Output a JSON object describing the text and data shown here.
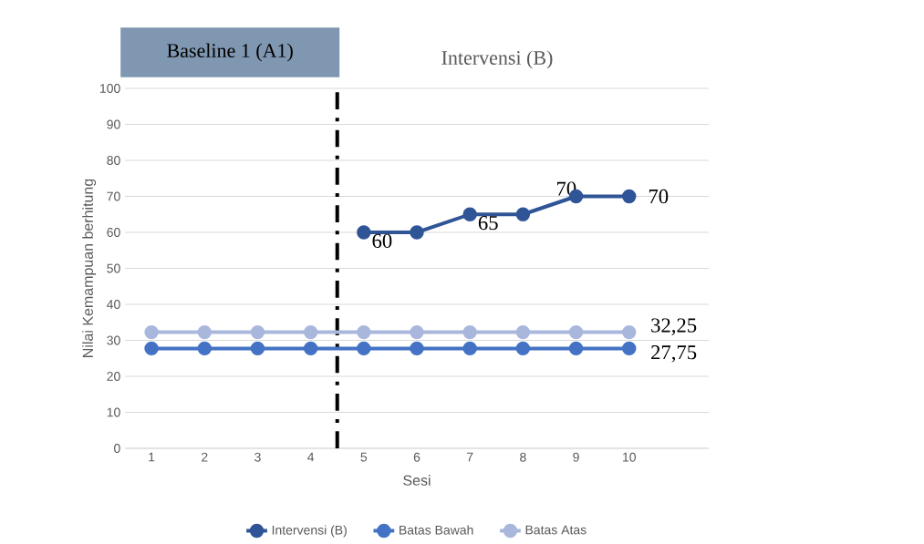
{
  "chart_data": {
    "type": "line",
    "xlabel": "Sesi",
    "ylabel": "Nilai Kemampuan berhitung",
    "x": [
      1,
      2,
      3,
      4,
      5,
      6,
      7,
      8,
      9,
      10
    ],
    "series": [
      {
        "name": "Intervensi (B)",
        "color": "#2f5597",
        "values": [
          null,
          null,
          null,
          null,
          60,
          60,
          65,
          65,
          70,
          70
        ],
        "value_labels": [
          null,
          null,
          null,
          null,
          "60",
          null,
          "65",
          null,
          "70",
          "70"
        ]
      },
      {
        "name": "Batas Bawah",
        "color": "#4472c4",
        "values": [
          27.75,
          27.75,
          27.75,
          27.75,
          27.75,
          27.75,
          27.75,
          27.75,
          27.75,
          27.75
        ],
        "value_labels": [
          null,
          null,
          null,
          null,
          null,
          null,
          null,
          null,
          null,
          "27,75"
        ]
      },
      {
        "name": "Batas Atas",
        "color": "#a9b7dc",
        "values": [
          32.25,
          32.25,
          32.25,
          32.25,
          32.25,
          32.25,
          32.25,
          32.25,
          32.25,
          32.25
        ],
        "value_labels": [
          null,
          null,
          null,
          null,
          null,
          null,
          null,
          null,
          null,
          "32,25"
        ]
      }
    ],
    "xlim": [
      0.5,
      11.5
    ],
    "xticks": [
      1,
      2,
      3,
      4,
      5,
      6,
      7,
      8,
      9,
      10
    ],
    "ylim": [
      0,
      100
    ],
    "yticks": [
      0,
      10,
      20,
      30,
      40,
      50,
      60,
      70,
      80,
      90,
      100
    ],
    "ref_lines": [
      {
        "axis": "x",
        "value": 4.5,
        "color": "#000000",
        "line_style": "dashdot"
      }
    ],
    "annotations": [
      "Baseline 1 (A1)",
      "Intervensi (B)"
    ],
    "grid": "y",
    "legend": "bottom",
    "marker": "circle",
    "line_style": "solid"
  }
}
